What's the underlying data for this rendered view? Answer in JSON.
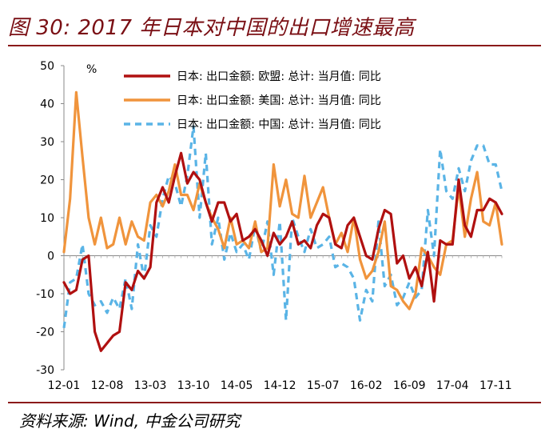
{
  "header": {
    "title": "图 30: 2017 年日本对中国的出口增速最高"
  },
  "footer": {
    "source": "资料来源: Wind, 中金公司研究"
  },
  "chart_data": {
    "type": "line",
    "unit_label": "%",
    "ylim": [
      -30,
      50
    ],
    "yticks": [
      50,
      40,
      30,
      20,
      10,
      0,
      -10,
      -20,
      -30
    ],
    "xtick_labels": [
      "12-01",
      "12-08",
      "13-03",
      "13-10",
      "14-05",
      "14-12",
      "15-07",
      "16-02",
      "16-09",
      "17-04",
      "17-11"
    ],
    "xtick_index": [
      0,
      7,
      14,
      21,
      28,
      35,
      42,
      49,
      56,
      63,
      70
    ],
    "n_points": 72,
    "legend_position": "top-center",
    "grid": false,
    "series": [
      {
        "name": "日本: 出口金额: 欧盟: 总计: 当月值: 同比",
        "color": "#b01010",
        "style": "solid",
        "values": [
          -7,
          -10,
          -9,
          -1,
          0,
          -20,
          -25,
          -23,
          -21,
          -20,
          -7,
          -9,
          -4,
          -6,
          -3,
          14,
          18,
          14,
          21,
          27,
          19,
          22,
          20,
          14,
          9,
          14,
          14,
          9,
          11,
          4,
          5,
          7,
          4,
          0,
          6,
          3,
          5,
          9,
          3,
          4,
          2,
          8,
          11,
          10,
          3,
          2,
          8,
          10,
          5,
          0,
          -1,
          7,
          12,
          11,
          -2,
          0,
          -6,
          -3,
          -8,
          1,
          -12,
          4,
          3,
          3,
          20,
          8,
          5,
          12,
          12,
          15,
          14,
          11
        ]
      },
      {
        "name": "日本: 出口金额: 美国: 总计: 当月值: 同比",
        "color": "#f0943c",
        "style": "solid",
        "values": [
          1,
          15,
          43,
          26,
          10,
          3,
          10,
          2,
          3,
          10,
          3,
          9,
          5,
          4,
          14,
          16,
          13,
          17,
          24,
          16,
          16,
          12,
          19,
          14,
          10,
          7,
          2,
          10,
          3,
          4,
          2,
          9,
          1,
          2,
          24,
          13,
          20,
          11,
          10,
          21,
          10,
          14,
          18,
          10,
          3,
          6,
          1,
          10,
          -1,
          -6,
          -4,
          1,
          9,
          -8,
          -9,
          -12,
          -14,
          -10,
          2,
          0,
          -3,
          -5,
          3,
          4,
          18,
          5,
          15,
          22,
          9,
          8,
          14,
          3
        ]
      },
      {
        "name": "日本: 出口金额: 中国: 总计: 当月值: 同比",
        "color": "#5ab4e6",
        "style": "dashed",
        "values": [
          -19,
          -7,
          -6,
          3,
          -10,
          -13,
          -12,
          -15,
          -11,
          -14,
          -6,
          -14,
          3,
          -6,
          8,
          5,
          15,
          21,
          19,
          13,
          21,
          34,
          10,
          27,
          3,
          10,
          -1,
          6,
          1,
          3,
          -1,
          8,
          1,
          9,
          -5,
          9,
          -17,
          10,
          5,
          1,
          7,
          2,
          3,
          5,
          -3,
          -2,
          -3,
          -6,
          -17,
          -9,
          -12,
          9,
          -8,
          -5,
          -13,
          -11,
          -7,
          -11,
          -9,
          12,
          0,
          28,
          17,
          15,
          23,
          17,
          25,
          29,
          29,
          24,
          24,
          17
        ]
      }
    ]
  }
}
